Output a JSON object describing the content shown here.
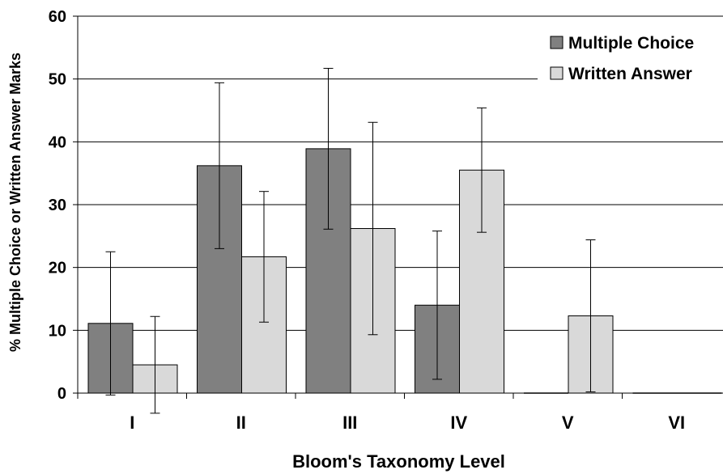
{
  "chart_data": {
    "type": "bar",
    "title": "",
    "xlabel": "Bloom's Taxonomy Level",
    "ylabel": "% Multiple Choice or Written Answer Marks",
    "ylim": [
      0,
      60
    ],
    "yticks": [
      "0",
      "10",
      "20",
      "30",
      "40",
      "50",
      "60"
    ],
    "categories": [
      "I",
      "II",
      "III",
      "IV",
      "V",
      "VI"
    ],
    "grid": true,
    "legend_position": "top-right",
    "series": [
      {
        "name": "Multiple Choice",
        "color": "#808080",
        "values": [
          11.1,
          36.2,
          38.9,
          14.0,
          0,
          0
        ],
        "error": [
          11.4,
          13.2,
          12.8,
          11.8,
          null,
          null
        ]
      },
      {
        "name": "Written Answer",
        "color": "#d9d9d9",
        "values": [
          4.5,
          21.7,
          26.2,
          35.5,
          12.3,
          0
        ],
        "error": [
          7.7,
          10.4,
          16.9,
          9.9,
          12.1,
          null
        ]
      }
    ]
  }
}
